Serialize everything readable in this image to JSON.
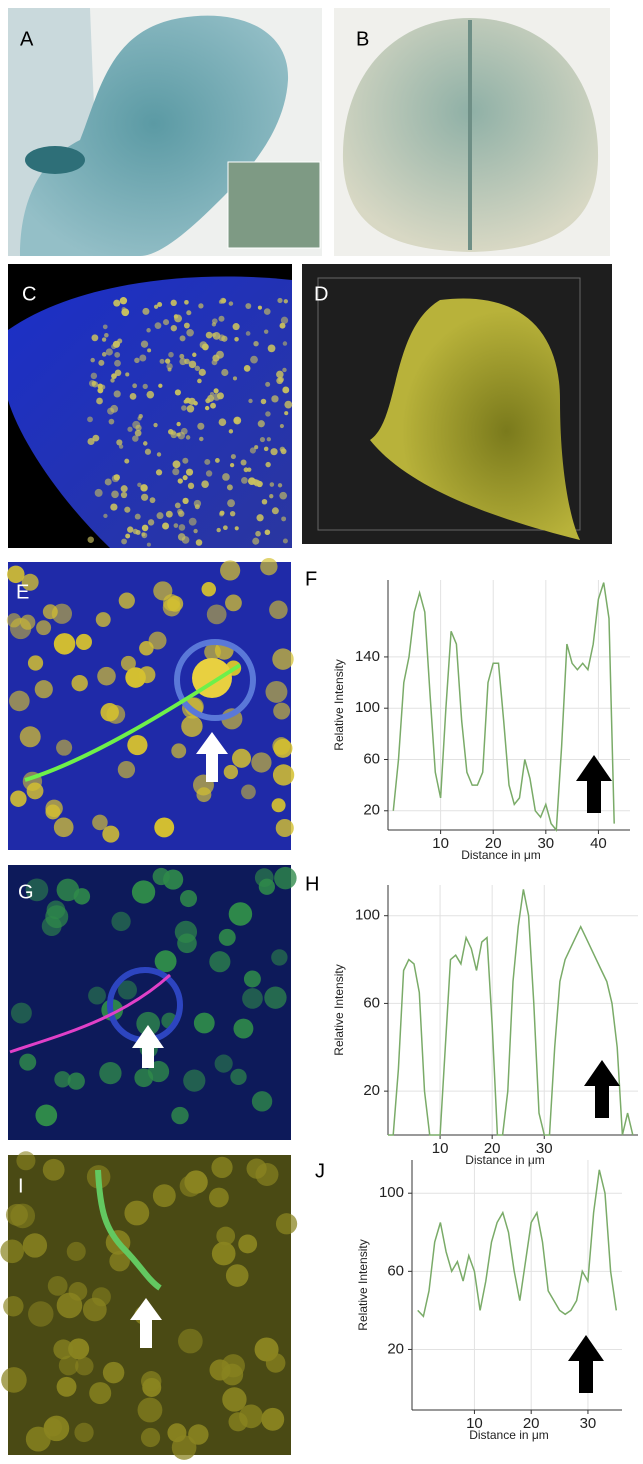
{
  "panel_labels": [
    "A",
    "B",
    "C",
    "D",
    "E",
    "G",
    "I"
  ],
  "chart_data": [
    {
      "type": "line",
      "panel": "F",
      "ylabel": "Relative Intensity",
      "xlabel": "Distance in μm",
      "color": "#7aab68",
      "grid": true,
      "xlim": [
        0,
        46
      ],
      "ylim": [
        5,
        200
      ],
      "xticks": [
        10,
        20,
        30,
        40
      ],
      "yticks": [
        20,
        60,
        100,
        140
      ],
      "x": [
        1,
        2,
        3,
        4,
        5,
        6,
        7,
        8,
        9,
        10,
        11,
        12,
        13,
        14,
        15,
        16,
        17,
        18,
        19,
        20,
        21,
        22,
        23,
        24,
        25,
        26,
        27,
        28,
        29,
        30,
        31,
        32,
        33,
        34,
        35,
        36,
        37,
        38,
        39,
        40,
        41,
        42,
        43
      ],
      "values": [
        20,
        60,
        120,
        140,
        175,
        190,
        175,
        110,
        50,
        30,
        100,
        160,
        150,
        90,
        50,
        40,
        40,
        50,
        120,
        135,
        135,
        90,
        40,
        25,
        30,
        60,
        45,
        20,
        15,
        25,
        10,
        5,
        70,
        150,
        135,
        130,
        135,
        130,
        150,
        185,
        198,
        170,
        10
      ]
    },
    {
      "type": "line",
      "panel": "H",
      "ylabel": "Relative Intensity",
      "xlabel": "Distance in μm",
      "color": "#7aab68",
      "grid": true,
      "xlim": [
        0,
        48
      ],
      "ylim": [
        0,
        114
      ],
      "xticks": [
        10,
        20,
        30
      ],
      "yticks": [
        20,
        60,
        100
      ],
      "x": [
        0,
        1,
        2,
        3,
        4,
        5,
        6,
        7,
        8,
        9,
        10,
        11,
        12,
        13,
        14,
        15,
        16,
        17,
        18,
        19,
        20,
        21,
        22,
        23,
        24,
        25,
        26,
        27,
        28,
        29,
        30,
        31,
        32,
        33,
        34,
        35,
        36,
        37,
        38,
        39,
        40,
        41,
        42,
        43,
        44,
        45,
        46,
        47
      ],
      "values": [
        0,
        0,
        30,
        75,
        80,
        78,
        65,
        20,
        0,
        0,
        0,
        40,
        80,
        82,
        78,
        90,
        85,
        75,
        88,
        90,
        50,
        0,
        0,
        20,
        70,
        95,
        112,
        100,
        60,
        10,
        0,
        0,
        40,
        70,
        80,
        85,
        90,
        95,
        90,
        85,
        80,
        75,
        70,
        60,
        40,
        0,
        10,
        0
      ]
    },
    {
      "type": "line",
      "panel": "J",
      "ylabel": "Relative Intensity",
      "xlabel": "Distance in μm",
      "color": "#7aab68",
      "grid": true,
      "xlim": [
        -1,
        36
      ],
      "ylim": [
        -11,
        117
      ],
      "xticks": [
        10,
        20,
        30
      ],
      "yticks": [
        20,
        60,
        100
      ],
      "x": [
        0,
        1,
        2,
        3,
        4,
        5,
        6,
        7,
        8,
        9,
        10,
        11,
        12,
        13,
        14,
        15,
        16,
        17,
        18,
        19,
        20,
        21,
        22,
        23,
        24,
        25,
        26,
        27,
        28,
        29,
        30,
        31,
        32,
        33,
        34,
        35
      ],
      "values": [
        40,
        37,
        50,
        75,
        85,
        70,
        60,
        65,
        55,
        68,
        60,
        40,
        55,
        75,
        85,
        90,
        80,
        60,
        45,
        65,
        85,
        90,
        75,
        50,
        45,
        40,
        38,
        40,
        45,
        60,
        55,
        90,
        112,
        100,
        60,
        40
      ]
    }
  ]
}
